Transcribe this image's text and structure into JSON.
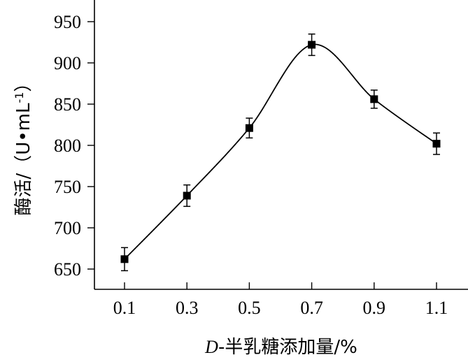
{
  "chart_data": {
    "type": "line",
    "x": [
      0.1,
      0.3,
      0.5,
      0.7,
      0.9,
      1.1
    ],
    "x_tick_labels": [
      "0.1",
      "0.3",
      "0.5",
      "0.7",
      "0.9",
      "1.1"
    ],
    "y_ticks": [
      650,
      700,
      750,
      800,
      850,
      900,
      950
    ],
    "xlim": [
      0.0,
      1.2
    ],
    "ylim": [
      625,
      970
    ],
    "series": [
      {
        "values": [
          662,
          739,
          821,
          922,
          856,
          802
        ],
        "error": [
          14,
          13,
          12,
          13,
          11,
          13
        ],
        "marker": "square",
        "line": "smooth"
      }
    ],
    "xlabel_prefix": "D",
    "xlabel": "-半乳糖添加量/%",
    "ylabel": "酶活/（U•mL",
    "ylabel_sup": "-1",
    "ylabel_end": "）",
    "grid": false,
    "colors": {
      "line": "#000000",
      "marker": "#000000"
    }
  }
}
